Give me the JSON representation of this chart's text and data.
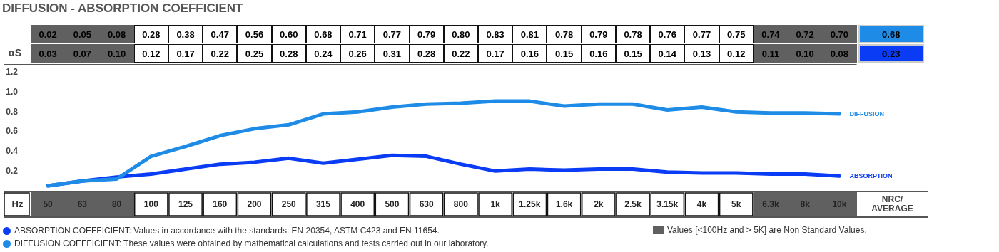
{
  "chart_data": {
    "type": "line",
    "title": "DIFFUSION - ABSORPTION COEFFICIENT",
    "xlabel": "Hz",
    "categories": [
      "50",
      "63",
      "80",
      "100",
      "125",
      "160",
      "200",
      "250",
      "315",
      "400",
      "500",
      "630",
      "800",
      "1k",
      "1.25k",
      "1.6k",
      "2k",
      "2.5k",
      "3.15k",
      "4k",
      "5k",
      "6.3k",
      "8k",
      "10k"
    ],
    "series": [
      {
        "name": "DIFFUSION",
        "color": "#1e8ce6",
        "values": [
          0.05,
          0.1,
          0.12,
          0.35,
          0.45,
          0.56,
          0.63,
          0.67,
          0.78,
          0.8,
          0.85,
          0.88,
          0.89,
          0.91,
          0.91,
          0.86,
          0.88,
          0.88,
          0.82,
          0.85,
          0.8,
          0.79,
          0.79,
          0.78
        ]
      },
      {
        "name": "ABSORPTION",
        "color": "#0a3cf5",
        "values": [
          0.05,
          0.1,
          0.14,
          0.17,
          0.22,
          0.27,
          0.29,
          0.33,
          0.28,
          0.32,
          0.36,
          0.35,
          0.27,
          0.2,
          0.22,
          0.21,
          0.22,
          0.22,
          0.19,
          0.18,
          0.18,
          0.17,
          0.17,
          0.15
        ]
      }
    ],
    "ylim": [
      0,
      1.2
    ],
    "yticks": [
      0.2,
      0.4,
      0.6,
      0.8,
      {
        "value": 1.0,
        "label": "1.0"
      },
      1.2
    ],
    "annotations": [
      "0.02",
      "0.05",
      "0.08",
      "0.28",
      "0.38",
      "0.47",
      "0.56",
      "0.60",
      "0.68",
      "0.71",
      "0.77",
      "0.79",
      "0.80",
      "0.83",
      "0.81",
      "0.78",
      "0.79",
      "0.78",
      "0.76",
      "0.77",
      "0.75",
      "0.74",
      "0.72",
      "0.70",
      "0.68",
      "0.03",
      "0.07",
      "0.10",
      "0.12",
      "0.17",
      "0.22",
      "0.25",
      "0.28",
      "0.24",
      "0.26",
      "0.31",
      "0.28",
      "0.22",
      "0.17",
      "0.16",
      "0.15",
      "0.16",
      "0.15",
      "0.14",
      "0.13",
      "0.12",
      "0.11",
      "0.10",
      "0.08",
      "0.23",
      "αS",
      "NRC/ AVERAGE",
      "ABSORPTION COEFFICIENT: Values in accordance with the standards: EN 20354, ASTM C423 and EN 11654.",
      "DIFFUSION COEFFICIENT: These values were obtained by mathematical calculations and tests carried out in our laboratory.",
      "Values [<100Hz and > 5K] are Non Standard Values."
    ]
  }
}
